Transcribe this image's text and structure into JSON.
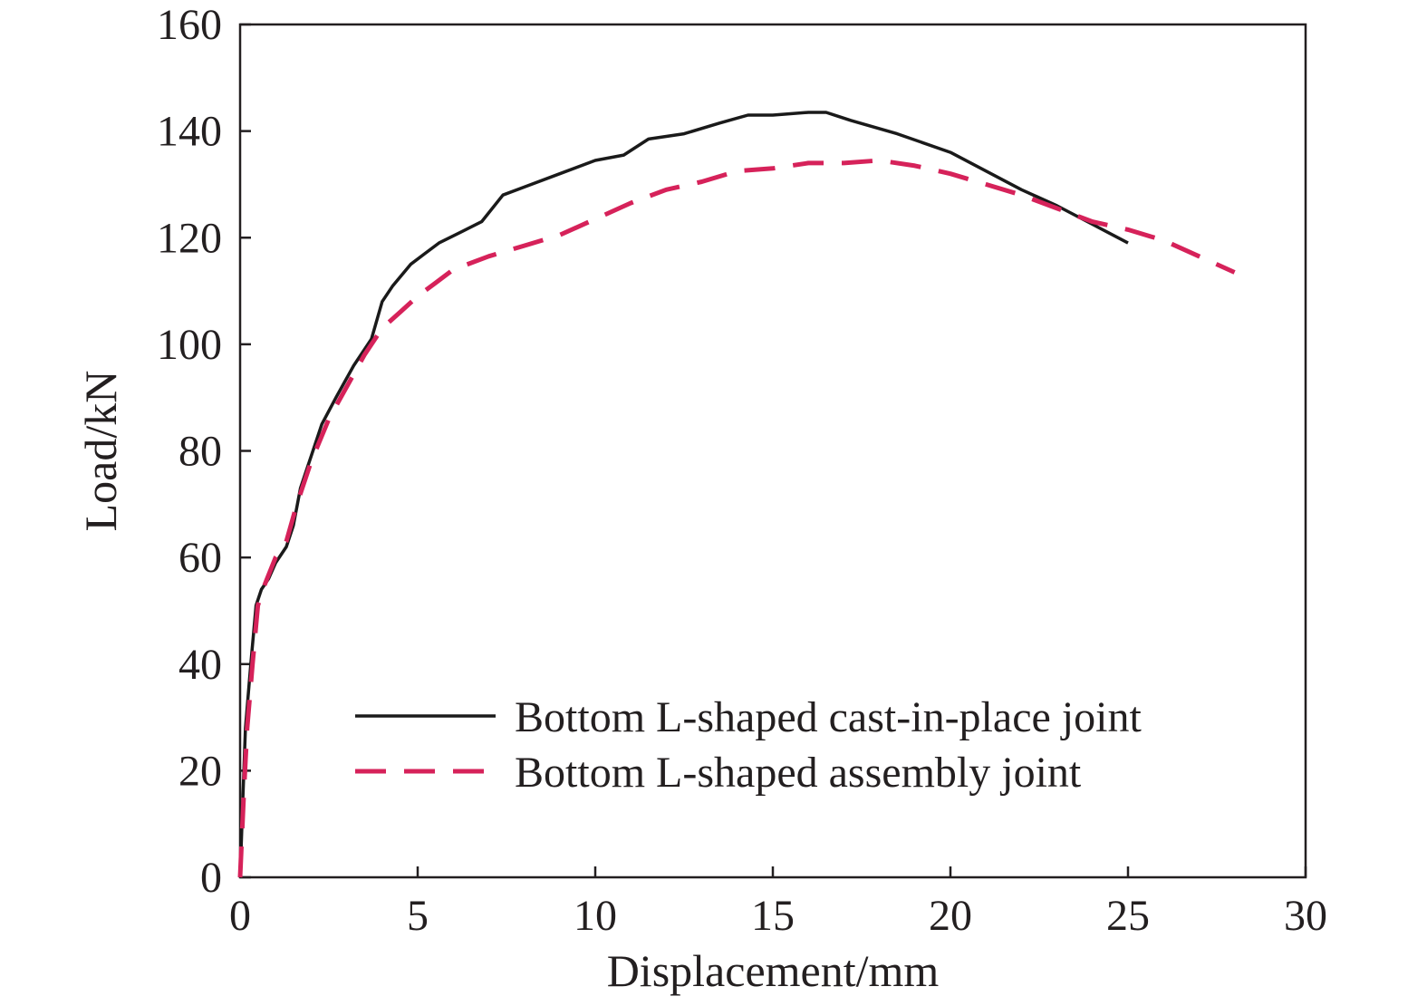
{
  "chart_data": {
    "type": "line",
    "xlabel": "Displacement/mm",
    "ylabel": "Load/kN",
    "xlim": [
      0,
      30
    ],
    "ylim": [
      0,
      160
    ],
    "xticks": [
      0,
      5,
      10,
      15,
      20,
      25,
      30
    ],
    "yticks": [
      0,
      20,
      40,
      60,
      80,
      100,
      120,
      140,
      160
    ],
    "grid": false,
    "legend_position": "bottom-right",
    "series": [
      {
        "name": "Bottom L-shaped cast-in-place joint",
        "color": "#1a1a1a",
        "line_style": "solid",
        "points": [
          [
            0,
            0
          ],
          [
            0.08,
            15
          ],
          [
            0.15,
            28
          ],
          [
            0.3,
            40
          ],
          [
            0.45,
            51
          ],
          [
            0.6,
            54
          ],
          [
            0.8,
            56
          ],
          [
            1.0,
            59
          ],
          [
            1.3,
            62
          ],
          [
            1.5,
            66
          ],
          [
            1.7,
            73
          ],
          [
            2.0,
            79
          ],
          [
            2.3,
            85
          ],
          [
            2.7,
            90
          ],
          [
            3.2,
            96
          ],
          [
            3.7,
            101
          ],
          [
            4.0,
            108
          ],
          [
            4.3,
            111
          ],
          [
            4.8,
            115
          ],
          [
            5.2,
            117
          ],
          [
            5.6,
            119
          ],
          [
            6.2,
            121
          ],
          [
            6.8,
            123
          ],
          [
            7.4,
            128
          ],
          [
            8.0,
            129.5
          ],
          [
            9.0,
            132
          ],
          [
            10.0,
            134.5
          ],
          [
            10.8,
            135.5
          ],
          [
            11.5,
            138.5
          ],
          [
            12.5,
            139.5
          ],
          [
            13.5,
            141.5
          ],
          [
            14.3,
            143
          ],
          [
            15.0,
            143
          ],
          [
            16.0,
            143.5
          ],
          [
            16.5,
            143.5
          ],
          [
            17.2,
            142
          ],
          [
            18.5,
            139.5
          ],
          [
            20.0,
            136
          ],
          [
            21.0,
            132.5
          ],
          [
            22.0,
            129
          ],
          [
            23.0,
            126
          ],
          [
            24.0,
            122.5
          ],
          [
            25.0,
            119
          ]
        ]
      },
      {
        "name": "Bottom L-shaped assembly joint",
        "color": "#d6225a",
        "line_style": "dashed",
        "points": [
          [
            0,
            0
          ],
          [
            0.1,
            15
          ],
          [
            0.2,
            28
          ],
          [
            0.35,
            40
          ],
          [
            0.5,
            51
          ],
          [
            0.7,
            55
          ],
          [
            1.0,
            60
          ],
          [
            1.3,
            63
          ],
          [
            1.6,
            70
          ],
          [
            2.0,
            78
          ],
          [
            2.5,
            86
          ],
          [
            3.0,
            92
          ],
          [
            3.5,
            98
          ],
          [
            4.0,
            103
          ],
          [
            4.5,
            106
          ],
          [
            5.0,
            109
          ],
          [
            5.5,
            111.5
          ],
          [
            6.0,
            114
          ],
          [
            7.0,
            116.5
          ],
          [
            8.0,
            118.5
          ],
          [
            9.0,
            120.5
          ],
          [
            10.0,
            123.5
          ],
          [
            11.0,
            126.5
          ],
          [
            12.0,
            129
          ],
          [
            13.0,
            130.5
          ],
          [
            14.0,
            132.5
          ],
          [
            15.0,
            133
          ],
          [
            16.0,
            134
          ],
          [
            17.0,
            134
          ],
          [
            18.0,
            134.5
          ],
          [
            19.0,
            133.5
          ],
          [
            20.0,
            132
          ],
          [
            21.0,
            130
          ],
          [
            22.0,
            128
          ],
          [
            23.0,
            125.5
          ],
          [
            24.0,
            123
          ],
          [
            25.0,
            121.5
          ],
          [
            26.0,
            119.5
          ],
          [
            27.0,
            116.5
          ],
          [
            28.0,
            113.5
          ]
        ]
      }
    ]
  }
}
